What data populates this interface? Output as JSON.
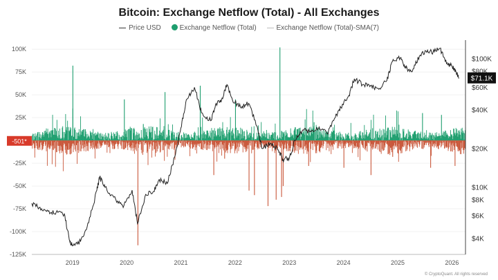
{
  "chart_data": {
    "type": "bar+line",
    "title": "Bitcoin: Exchange Netflow (Total) - All Exchanges",
    "legend": [
      {
        "label": "Price USD",
        "marker": "line",
        "color": "#333333"
      },
      {
        "label": "Exchange Netflow (Total)",
        "marker": "dot",
        "color": "#1e9e6e"
      },
      {
        "label": "Exchange Netflow (Total)-SMA(7)",
        "marker": "line",
        "color": "#bbbbbb"
      }
    ],
    "x_range": [
      2018.25,
      2026.25
    ],
    "x_ticks": [
      "2019",
      "2020",
      "2021",
      "2022",
      "2023",
      "2024",
      "2025",
      "2026"
    ],
    "left_axis": {
      "ylim": [
        -125000,
        110000
      ],
      "ticks": [
        {
          "value": 100000,
          "label": "100K"
        },
        {
          "value": 75000,
          "label": "75K"
        },
        {
          "value": 50000,
          "label": "50K"
        },
        {
          "value": 25000,
          "label": "25K"
        },
        {
          "value": -25000,
          "label": "-25K"
        },
        {
          "value": -50000,
          "label": "-50K"
        },
        {
          "value": -75000,
          "label": "-75K"
        },
        {
          "value": -100000,
          "label": "-100K"
        },
        {
          "value": -125000,
          "label": "-125K"
        }
      ]
    },
    "right_axis": {
      "scale": "log",
      "ylim": [
        3000,
        140000
      ],
      "ticks": [
        {
          "value": 100000,
          "label": "$100K"
        },
        {
          "value": 80000,
          "label": "$80K"
        },
        {
          "value": 60000,
          "label": "$60K"
        },
        {
          "value": 40000,
          "label": "$40K"
        },
        {
          "value": 20000,
          "label": "$20K"
        },
        {
          "value": 10000,
          "label": "$10K"
        },
        {
          "value": 8000,
          "label": "$8K"
        },
        {
          "value": 6000,
          "label": "$6K"
        },
        {
          "value": 4000,
          "label": "$4K"
        }
      ]
    },
    "current_netflow": {
      "value": -501,
      "label": "-501*"
    },
    "current_price": {
      "value": 71100,
      "label": "$71.1K"
    },
    "price_series": {
      "name": "Price USD",
      "points": [
        [
          2018.25,
          7500
        ],
        [
          2018.4,
          7000
        ],
        [
          2018.55,
          6500
        ],
        [
          2018.7,
          6400
        ],
        [
          2018.85,
          6200
        ],
        [
          2018.95,
          3800
        ],
        [
          2019.0,
          3500
        ],
        [
          2019.15,
          3800
        ],
        [
          2019.3,
          5300
        ],
        [
          2019.45,
          9500
        ],
        [
          2019.5,
          12000
        ],
        [
          2019.6,
          10000
        ],
        [
          2019.8,
          8000
        ],
        [
          2019.95,
          7200
        ],
        [
          2020.1,
          9500
        ],
        [
          2020.2,
          5200
        ],
        [
          2020.35,
          8800
        ],
        [
          2020.5,
          9300
        ],
        [
          2020.6,
          11500
        ],
        [
          2020.75,
          10700
        ],
        [
          2020.9,
          18000
        ],
        [
          2021.0,
          29000
        ],
        [
          2021.1,
          48000
        ],
        [
          2021.25,
          60000
        ],
        [
          2021.38,
          38000
        ],
        [
          2021.55,
          33000
        ],
        [
          2021.65,
          45000
        ],
        [
          2021.75,
          48000
        ],
        [
          2021.85,
          63000
        ],
        [
          2021.95,
          48000
        ],
        [
          2022.1,
          42000
        ],
        [
          2022.25,
          45000
        ],
        [
          2022.4,
          30000
        ],
        [
          2022.5,
          20000
        ],
        [
          2022.65,
          22000
        ],
        [
          2022.8,
          19500
        ],
        [
          2022.88,
          16500
        ],
        [
          2023.0,
          16800
        ],
        [
          2023.1,
          23000
        ],
        [
          2023.25,
          28000
        ],
        [
          2023.4,
          27000
        ],
        [
          2023.55,
          29500
        ],
        [
          2023.7,
          26000
        ],
        [
          2023.85,
          35000
        ],
        [
          2023.95,
          42000
        ],
        [
          2024.1,
          52000
        ],
        [
          2024.2,
          70000
        ],
        [
          2024.35,
          63000
        ],
        [
          2024.5,
          62000
        ],
        [
          2024.65,
          58000
        ],
        [
          2024.8,
          68000
        ],
        [
          2024.9,
          95000
        ],
        [
          2025.05,
          102000
        ],
        [
          2025.15,
          85000
        ],
        [
          2025.27,
          80000
        ],
        [
          2025.4,
          105000
        ],
        [
          2025.55,
          117000
        ],
        [
          2025.65,
          112000
        ],
        [
          2025.78,
          121000
        ],
        [
          2025.9,
          92000
        ],
        [
          2026.0,
          88000
        ],
        [
          2026.08,
          78000
        ],
        [
          2026.13,
          71100
        ]
      ]
    },
    "netflow_highlights": [
      [
        2019.0,
        82000
      ],
      [
        2019.0,
        35000
      ],
      [
        2019.95,
        45000
      ],
      [
        2020.2,
        -115000
      ],
      [
        2020.3,
        18000
      ],
      [
        2020.7,
        53000
      ],
      [
        2021.35,
        60000
      ],
      [
        2021.6,
        -38000
      ],
      [
        2021.8,
        -20000
      ],
      [
        2022.0,
        45000
      ],
      [
        2022.25,
        -55000
      ],
      [
        2022.35,
        -60000
      ],
      [
        2022.6,
        -72000
      ],
      [
        2022.75,
        -65000
      ],
      [
        2022.82,
        102000
      ],
      [
        2022.85,
        -62000
      ],
      [
        2022.88,
        -50000
      ],
      [
        2023.35,
        -28000
      ],
      [
        2023.45,
        20000
      ],
      [
        2024.0,
        -30000
      ],
      [
        2024.5,
        -38000
      ],
      [
        2024.9,
        -18000
      ],
      [
        2025.45,
        30000
      ],
      [
        2025.6,
        -30000
      ],
      [
        2025.8,
        28000
      ],
      [
        2026.05,
        -28000
      ]
    ],
    "source_note": "© CryptoQuant. All rights reserved"
  }
}
